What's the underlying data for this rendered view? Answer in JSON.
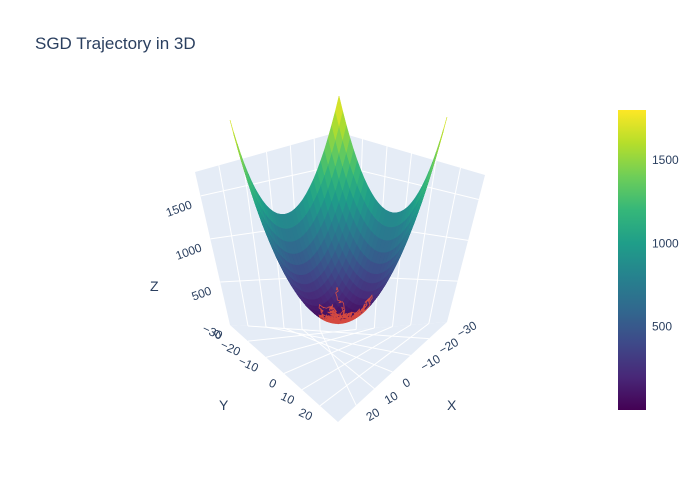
{
  "chart_data": {
    "type": "surface3d",
    "title": "SGD Trajectory in 3D",
    "xlabel": "X",
    "ylabel": "Y",
    "zlabel": "Z",
    "x_range": [
      -30,
      30
    ],
    "y_range": [
      -30,
      30
    ],
    "z_range": [
      0,
      1800
    ],
    "surface": "z = x^2 + y^2",
    "x_ticks": [
      "−30",
      "−20",
      "−10",
      "0",
      "10",
      "20"
    ],
    "x_tick_values": [
      -30,
      -20,
      -10,
      0,
      10,
      20
    ],
    "y_ticks": [
      "−30",
      "−20",
      "−10",
      "0",
      "10",
      "20"
    ],
    "y_tick_values": [
      -30,
      -20,
      -10,
      0,
      10,
      20
    ],
    "z_ticks": [
      "0",
      "500",
      "1000",
      "1500"
    ],
    "z_tick_values": [
      0,
      500,
      1000,
      1500
    ],
    "colorbar": {
      "colorscale": "Viridis",
      "range": [
        0,
        1800
      ],
      "ticks": [
        "500",
        "1000",
        "1500"
      ],
      "tick_values": [
        500,
        1000,
        1500
      ],
      "colors": [
        "#440154",
        "#482878",
        "#3e4989",
        "#31688e",
        "#26828e",
        "#1f9e89",
        "#35b779",
        "#6ece58",
        "#b5de2b",
        "#fde725"
      ]
    },
    "trajectory": {
      "color": "#ef553b",
      "description_values": "noisy SGD path near the bottom of the bowl"
    }
  }
}
